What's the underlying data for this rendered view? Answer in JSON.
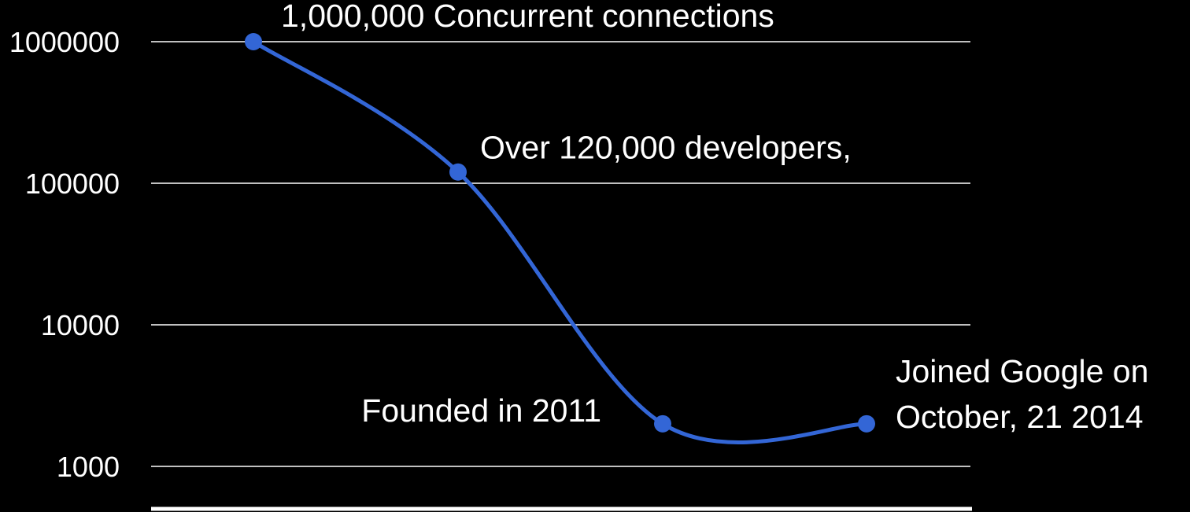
{
  "chart_data": {
    "type": "line",
    "x": [
      "",
      "",
      "",
      ""
    ],
    "y_scale": "log",
    "ylim": [
      1000,
      1000000
    ],
    "y_ticks": [
      {
        "value": 1000,
        "label": "1000"
      },
      {
        "value": 10000,
        "label": "10000"
      },
      {
        "value": 100000,
        "label": "100000"
      },
      {
        "value": 1000000,
        "label": "1000000"
      }
    ],
    "series": [
      {
        "values": [
          1000000,
          120000,
          2000,
          2000
        ],
        "color": "#3366d6"
      }
    ],
    "annotations": [
      {
        "point_index": 0,
        "lines": [
          "1,000,000 Concurrent connections"
        ]
      },
      {
        "point_index": 1,
        "lines": [
          "Over 120,000 developers,"
        ]
      },
      {
        "point_index": 2,
        "lines": [
          "Founded in 2011"
        ]
      },
      {
        "point_index": 3,
        "lines": [
          "Joined Google on",
          "October, 21 2014"
        ]
      }
    ],
    "grid": true,
    "legend": "none",
    "background_color": "#000000",
    "grid_color": "#ffffff",
    "text_color": "#ffffff"
  }
}
